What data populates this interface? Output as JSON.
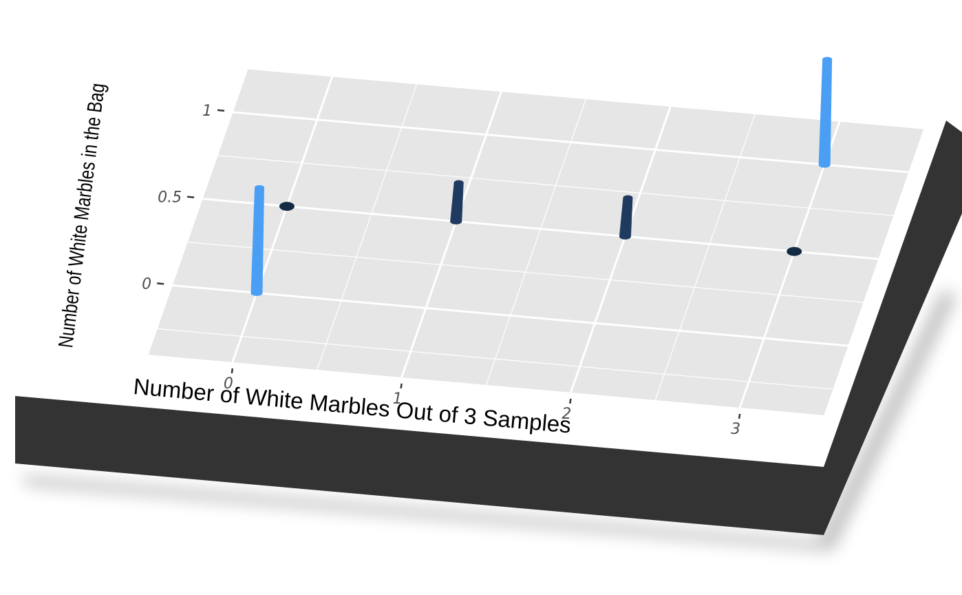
{
  "chart_data": {
    "type": "bar",
    "view": "3d-perspective",
    "xlabel": "Number of White Marbles Out of 3 Samples",
    "ylabel": "Number of White Marbles in the Bag",
    "x_ticks": [
      "0",
      "1",
      "2",
      "3"
    ],
    "y_ticks": [
      "0",
      "0.5",
      "1"
    ],
    "grid": true,
    "columns": [
      {
        "x": 0,
        "y": 0,
        "height": 0.68,
        "color": "#4A9FF5"
      },
      {
        "x": 1,
        "y": 0.5,
        "height": 0.25,
        "color": "#1F3A5F"
      },
      {
        "x": 2,
        "y": 0.5,
        "height": 0.25,
        "color": "#1F3A5F"
      },
      {
        "x": 3,
        "y": 1,
        "height": 0.68,
        "color": "#4A9FF5"
      }
    ],
    "points": [
      {
        "x": 0,
        "y": 0.5,
        "color": "#132B43"
      },
      {
        "x": 3,
        "y": 0.5,
        "color": "#132B43"
      }
    ]
  }
}
